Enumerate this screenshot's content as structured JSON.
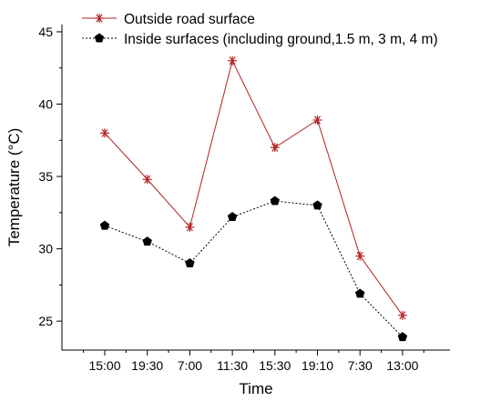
{
  "chart_data": {
    "type": "line",
    "categories": [
      "15:00",
      "19:30",
      "7:00",
      "11:30",
      "15:30",
      "19:10",
      "7:30",
      "13:00"
    ],
    "series": [
      {
        "name": "Outside road surface",
        "values": [
          38.0,
          34.8,
          31.5,
          43.0,
          37.0,
          38.9,
          29.5,
          25.4
        ],
        "color": "#b22222",
        "marker": "asterisk",
        "line_style": "solid"
      },
      {
        "name": "Inside surfaces  (including ground,1.5 m, 3 m, 4 m)",
        "values": [
          31.6,
          30.5,
          29.0,
          32.2,
          33.3,
          33.0,
          26.9,
          23.9
        ],
        "color": "#000000",
        "marker": "pentagon",
        "line_style": "dotted"
      }
    ],
    "title": "",
    "xlabel": "Time",
    "ylabel": "Temperature (°C)",
    "ylim": [
      23,
      45.5
    ],
    "yticks": [
      25,
      30,
      35,
      40,
      45
    ],
    "grid": false,
    "legend": "top"
  }
}
